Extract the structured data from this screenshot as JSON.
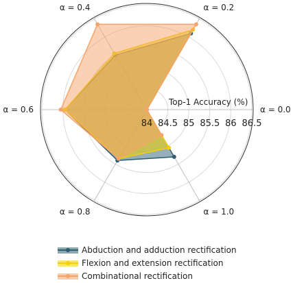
{
  "chart_data": {
    "type": "radar",
    "angular_axis": {
      "labels": [
        "α = 0.0",
        "α = 0.2",
        "α = 0.4",
        "α = 0.6",
        "α = 0.8",
        "α = 1.0"
      ],
      "angles_deg": [
        0,
        60,
        120,
        180,
        240,
        300
      ],
      "direction": "counterclockwise"
    },
    "radial_axis": {
      "title": "Top-1 Accuracy (%)",
      "range": [
        84,
        86.5
      ],
      "ticks": [
        84,
        84.5,
        85,
        85.5,
        86,
        86.5
      ],
      "tick_labels": [
        "84",
        "84.5",
        "85",
        "85.5",
        "86",
        "86.5"
      ],
      "grid": true
    },
    "legend": {
      "position": "bottom-left"
    },
    "series": [
      {
        "name": "Abduction and adduction rectification",
        "color": "#2f5f73",
        "fill_opacity": 0.5,
        "marker": "circle",
        "values": [
          84,
          86.1,
          85.5,
          85.95,
          85.4,
          85.3
        ]
      },
      {
        "name": "Flexion and extension rectification",
        "color": "#f4d000",
        "fill_opacity": 0.55,
        "marker": "circle",
        "values": [
          84,
          86.2,
          85.55,
          85.95,
          85.35,
          85.05
        ]
      },
      {
        "name": "Combinational rectification",
        "color": "#f5a46b",
        "fill_opacity": 0.5,
        "marker": "circle",
        "values": [
          84,
          86.35,
          86.35,
          86.05,
          85.35,
          84.7
        ]
      }
    ]
  }
}
